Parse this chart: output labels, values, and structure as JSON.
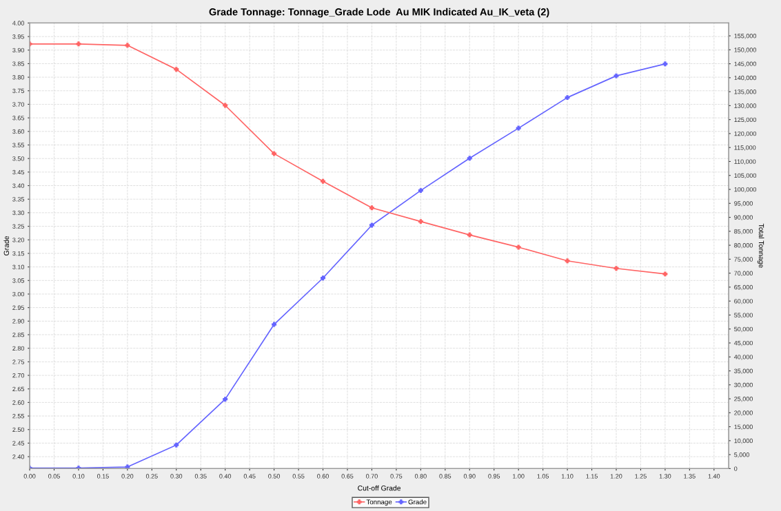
{
  "chart_data": {
    "type": "line",
    "title": "Grade Tonnage: Tonnage_Grade Lode  Au MIK Indicated Au_IK_veta (2)",
    "xlabel": "Cut-off Grade",
    "ylabel": "Grade",
    "y2label": "Total Tonnage",
    "x": [
      0.0,
      0.1,
      0.2,
      0.3,
      0.4,
      0.5,
      0.6,
      0.7,
      0.8,
      0.9,
      1.0,
      1.1,
      1.2,
      1.3
    ],
    "series": [
      {
        "name": "Tonnage",
        "color": "#ff6464",
        "axis": "y2",
        "values": [
          152100,
          152100,
          151600,
          143000,
          130100,
          112800,
          102900,
          93400,
          88500,
          83700,
          79300,
          74400,
          71700,
          69700
        ]
      },
      {
        "name": "Grade",
        "color": "#6464ff",
        "values": [
          2.358,
          2.358,
          2.362,
          2.443,
          2.612,
          2.888,
          3.059,
          3.254,
          3.382,
          3.501,
          3.612,
          3.725,
          3.805,
          3.849
        ]
      }
    ],
    "xlim": [
      0,
      1.43
    ],
    "xticks": [
      {
        "value": 0.0,
        "label": "0.00"
      },
      {
        "value": 0.05,
        "label": "0.05"
      },
      {
        "value": 0.1,
        "label": "0.10"
      },
      {
        "value": 0.15,
        "label": "0.15"
      },
      {
        "value": 0.2,
        "label": "0.20"
      },
      {
        "value": 0.25,
        "label": "0.25"
      },
      {
        "value": 0.3,
        "label": "0.30"
      },
      {
        "value": 0.35,
        "label": "0.35"
      },
      {
        "value": 0.4,
        "label": "0.40"
      },
      {
        "value": 0.45,
        "label": "0.45"
      },
      {
        "value": 0.5,
        "label": "0.50"
      },
      {
        "value": 0.55,
        "label": "0.55"
      },
      {
        "value": 0.6,
        "label": "0.60"
      },
      {
        "value": 0.65,
        "label": "0.65"
      },
      {
        "value": 0.7,
        "label": "0.70"
      },
      {
        "value": 0.75,
        "label": "0.75"
      },
      {
        "value": 0.8,
        "label": "0.80"
      },
      {
        "value": 0.85,
        "label": "0.85"
      },
      {
        "value": 0.9,
        "label": "0.90"
      },
      {
        "value": 0.95,
        "label": "0.95"
      },
      {
        "value": 1.0,
        "label": "1.00"
      },
      {
        "value": 1.05,
        "label": "1.05"
      },
      {
        "value": 1.1,
        "label": "1.10"
      },
      {
        "value": 1.15,
        "label": "1.15"
      },
      {
        "value": 1.2,
        "label": "1.20"
      },
      {
        "value": 1.25,
        "label": "1.25"
      },
      {
        "value": 1.3,
        "label": "1.30"
      },
      {
        "value": 1.35,
        "label": "1.35"
      },
      {
        "value": 1.4,
        "label": "1.40"
      }
    ],
    "ylim": [
      2.356,
      4.0
    ],
    "yticks": [
      {
        "value": 2.4,
        "label": "2.40"
      },
      {
        "value": 2.45,
        "label": "2.45"
      },
      {
        "value": 2.5,
        "label": "2.50"
      },
      {
        "value": 2.55,
        "label": "2.55"
      },
      {
        "value": 2.6,
        "label": "2.60"
      },
      {
        "value": 2.65,
        "label": "2.65"
      },
      {
        "value": 2.7,
        "label": "2.70"
      },
      {
        "value": 2.75,
        "label": "2.75"
      },
      {
        "value": 2.8,
        "label": "2.80"
      },
      {
        "value": 2.85,
        "label": "2.85"
      },
      {
        "value": 2.9,
        "label": "2.90"
      },
      {
        "value": 2.95,
        "label": "2.95"
      },
      {
        "value": 3.0,
        "label": "3.00"
      },
      {
        "value": 3.05,
        "label": "3.05"
      },
      {
        "value": 3.1,
        "label": "3.10"
      },
      {
        "value": 3.15,
        "label": "3.15"
      },
      {
        "value": 3.2,
        "label": "3.20"
      },
      {
        "value": 3.25,
        "label": "3.25"
      },
      {
        "value": 3.3,
        "label": "3.30"
      },
      {
        "value": 3.35,
        "label": "3.35"
      },
      {
        "value": 3.4,
        "label": "3.40"
      },
      {
        "value": 3.45,
        "label": "3.45"
      },
      {
        "value": 3.5,
        "label": "3.50"
      },
      {
        "value": 3.55,
        "label": "3.55"
      },
      {
        "value": 3.6,
        "label": "3.60"
      },
      {
        "value": 3.65,
        "label": "3.65"
      },
      {
        "value": 3.7,
        "label": "3.70"
      },
      {
        "value": 3.75,
        "label": "3.75"
      },
      {
        "value": 3.8,
        "label": "3.80"
      },
      {
        "value": 3.85,
        "label": "3.85"
      },
      {
        "value": 3.9,
        "label": "3.90"
      },
      {
        "value": 3.95,
        "label": "3.95"
      },
      {
        "value": 4.0,
        "label": "4.00"
      }
    ],
    "y2lim": [
      0,
      159600
    ],
    "y2ticks": [
      0,
      {
        "value": 5000,
        "label": "5,000"
      },
      {
        "value": 10000,
        "label": "10,000"
      },
      {
        "value": 15000,
        "label": "15,000"
      },
      {
        "value": 20000,
        "label": "20,000"
      },
      {
        "value": 25000,
        "label": "25,000"
      },
      {
        "value": 30000,
        "label": "30,000"
      },
      {
        "value": 35000,
        "label": "35,000"
      },
      {
        "value": 40000,
        "label": "40,000"
      },
      {
        "value": 45000,
        "label": "45,000"
      },
      {
        "value": 50000,
        "label": "50,000"
      },
      {
        "value": 55000,
        "label": "55,000"
      },
      {
        "value": 60000,
        "label": "60,000"
      },
      {
        "value": 65000,
        "label": "65,000"
      },
      {
        "value": 70000,
        "label": "70,000"
      },
      {
        "value": 75000,
        "label": "75,000"
      },
      {
        "value": 80000,
        "label": "80,000"
      },
      {
        "value": 85000,
        "label": "85,000"
      },
      {
        "value": 90000,
        "label": "90,000"
      },
      {
        "value": 95000,
        "label": "95,000"
      },
      {
        "value": 100000,
        "label": "100,000"
      },
      {
        "value": 105000,
        "label": "105,000"
      },
      {
        "value": 110000,
        "label": "110,000"
      },
      {
        "value": 115000,
        "label": "115,000"
      },
      {
        "value": 120000,
        "label": "120,000"
      },
      {
        "value": 125000,
        "label": "125,000"
      },
      {
        "value": 130000,
        "label": "130,000"
      },
      {
        "value": 135000,
        "label": "135,000"
      },
      {
        "value": 140000,
        "label": "140,000"
      },
      {
        "value": 145000,
        "label": "145,000"
      },
      {
        "value": 150000,
        "label": "150,000"
      },
      {
        "value": 155000,
        "label": "155,000"
      }
    ],
    "grid": true,
    "legend": "bottom",
    "marker": "cross",
    "line_style": "solid"
  }
}
